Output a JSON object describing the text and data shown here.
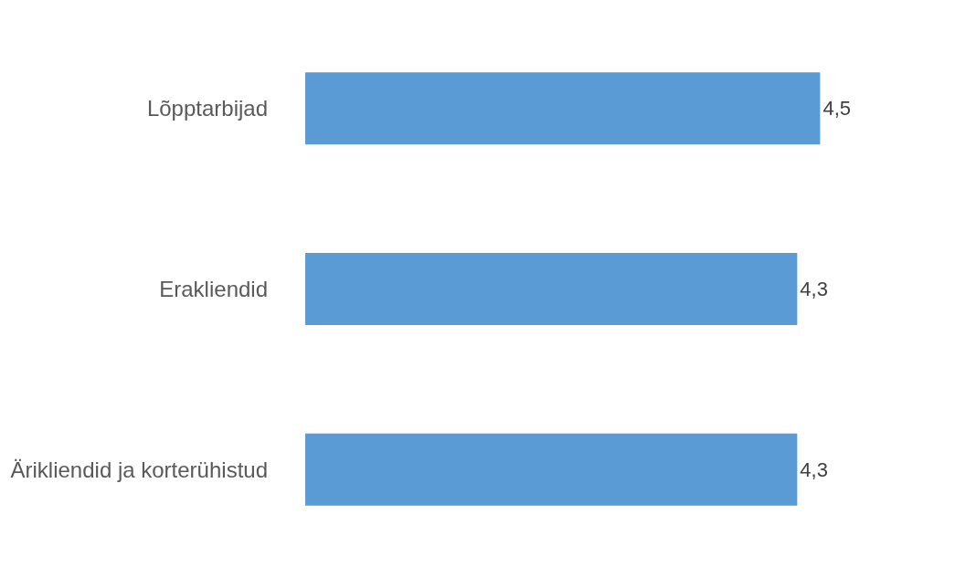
{
  "chart_data": {
    "type": "bar",
    "orientation": "horizontal",
    "categories": [
      "Lõpptarbijad",
      "Erakliendid",
      "Ärikliendid ja korterühistud"
    ],
    "values": [
      4.5,
      4.3,
      4.3
    ],
    "value_labels": [
      "4,5",
      "4,3",
      "4,3"
    ],
    "color": "#5b9bd5",
    "legend": false
  }
}
